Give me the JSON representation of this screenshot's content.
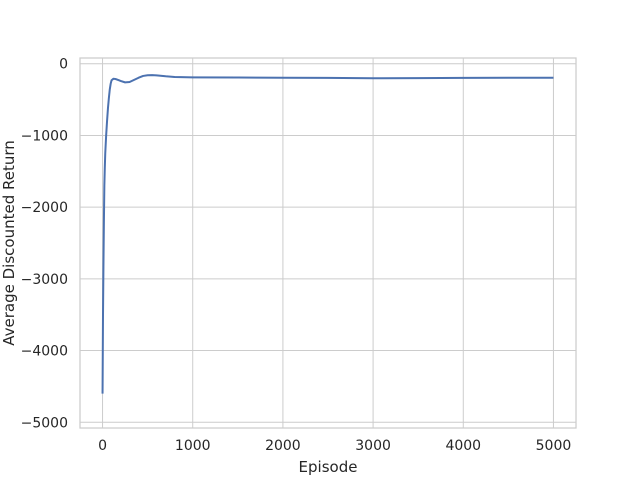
{
  "chart_data": {
    "type": "line",
    "xlabel": "Episode",
    "ylabel": "Average Discounted Return",
    "xlim": [
      -250,
      5250
    ],
    "ylim": [
      -5080,
      80
    ],
    "xticks": [
      0,
      1000,
      2000,
      3000,
      4000,
      5000
    ],
    "yticks": [
      0,
      -1000,
      -2000,
      -3000,
      -4000,
      -5000
    ],
    "xtick_labels": [
      "0",
      "1000",
      "2000",
      "3000",
      "4000",
      "5000"
    ],
    "ytick_labels": [
      "0",
      "−1000",
      "−2000",
      "−3000",
      "−4000",
      "−5000"
    ],
    "grid": true,
    "colors": {
      "line": "#4c72b0",
      "band": "#a9bedf",
      "grid": "#cccccc",
      "spine": "#cccccc",
      "text": "#262626"
    },
    "series": [
      {
        "x": [
          0,
          5,
          10,
          15,
          20,
          25,
          30,
          40,
          50,
          60,
          70,
          80,
          90,
          100,
          120,
          140,
          160,
          180,
          200,
          250,
          300,
          350,
          400,
          450,
          500,
          550,
          600,
          700,
          800,
          1000,
          1500,
          2000,
          2500,
          3000,
          3500,
          4000,
          4500,
          5000
        ],
        "y": [
          -4600,
          -3500,
          -2800,
          -2200,
          -1700,
          -1450,
          -1250,
          -1000,
          -800,
          -620,
          -480,
          -360,
          -280,
          -230,
          -210,
          -212,
          -220,
          -230,
          -240,
          -260,
          -255,
          -225,
          -195,
          -170,
          -160,
          -158,
          -162,
          -175,
          -185,
          -190,
          -192,
          -195,
          -198,
          -203,
          -200,
          -198,
          -196,
          -195
        ],
        "band_lower": [
          -4850,
          -3700,
          -2950,
          -2320,
          -1790,
          -1520,
          -1310,
          -1050,
          -840,
          -650,
          -505,
          -380,
          -295,
          -242,
          -220,
          -222,
          -230,
          -240,
          -250,
          -270,
          -265,
          -235,
          -205,
          -180,
          -170,
          -168,
          -172,
          -185,
          -195,
          -200,
          -202,
          -205,
          -208,
          -213,
          -210,
          -208,
          -206,
          -205
        ],
        "band_upper": [
          -4350,
          -3300,
          -2650,
          -2080,
          -1610,
          -1380,
          -1190,
          -950,
          -760,
          -590,
          -455,
          -340,
          -265,
          -218,
          -200,
          -202,
          -210,
          -220,
          -230,
          -250,
          -245,
          -215,
          -185,
          -160,
          -150,
          -148,
          -152,
          -165,
          -175,
          -180,
          -182,
          -185,
          -188,
          -193,
          -190,
          -188,
          -186,
          -185
        ]
      }
    ]
  }
}
